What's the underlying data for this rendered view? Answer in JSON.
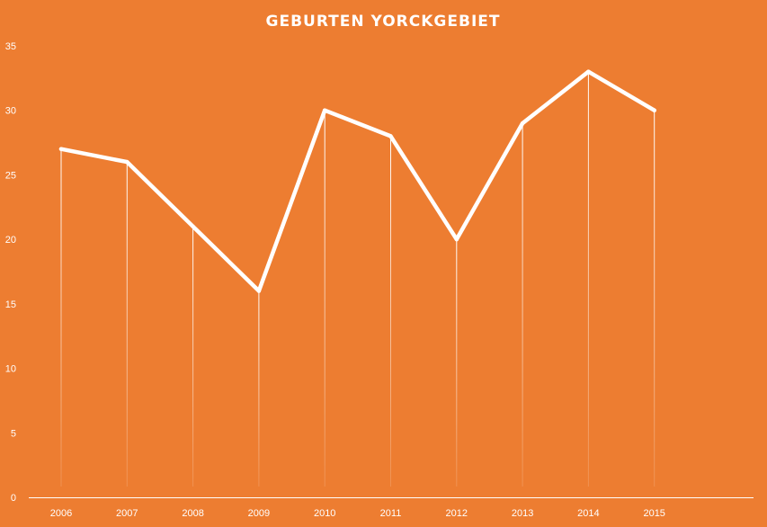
{
  "chart_data": {
    "type": "line",
    "title": "GEBURTEN YORCKGEBIET",
    "xlabel": "",
    "ylabel": "",
    "categories": [
      "2006",
      "2007",
      "2008",
      "2009",
      "2010",
      "2011",
      "2012",
      "2013",
      "2014",
      "2015"
    ],
    "series": [
      {
        "values": [
          27,
          26,
          21,
          16,
          30,
          28,
          20,
          29,
          33,
          30
        ]
      }
    ],
    "ylim": [
      0,
      35
    ],
    "yticks": [
      "0",
      "5",
      "10",
      "15",
      "20",
      "25",
      "30",
      "35"
    ],
    "grid": false,
    "drop_lines": true,
    "legend": "none",
    "colors": {
      "background": "#ED7D31",
      "line": "#FFFFFF",
      "text": "#FFFFFF"
    }
  }
}
